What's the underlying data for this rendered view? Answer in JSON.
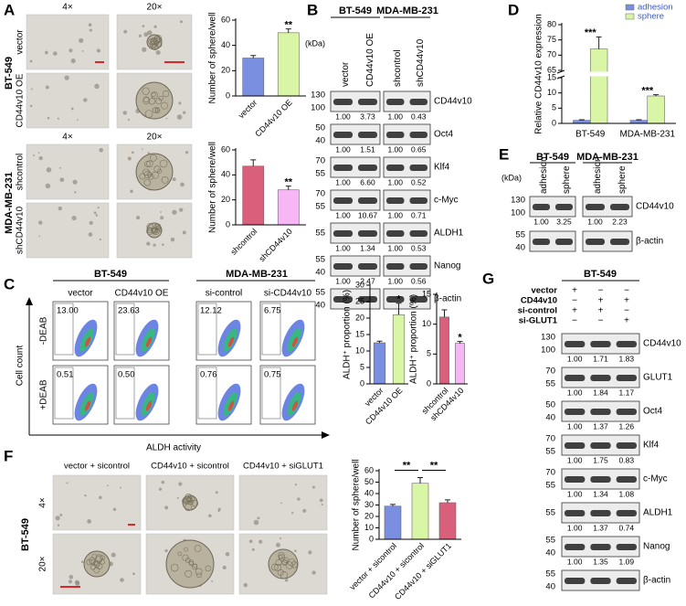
{
  "figure": {
    "A": {
      "label": "A",
      "groups": [
        {
          "name": "BT-549",
          "magnifications": [
            "4×",
            "20×"
          ],
          "rows": [
            "vector",
            "CD44v10 OE"
          ]
        },
        {
          "name": "MDA-MB-231",
          "magnifications": [
            "4×",
            "20×"
          ],
          "rows": [
            "shcontrol",
            "shCD44v10"
          ]
        }
      ]
    },
    "B": {
      "label": "B",
      "kda": "(kDa)",
      "groups": [
        "BT-549",
        "MDA-MB-231"
      ],
      "lanes": [
        "vector",
        "CD44v10 OE",
        "shcontrol",
        "shCD44v10"
      ],
      "blots": [
        {
          "protein": "CD44v10",
          "markers": [
            "130",
            "100"
          ],
          "quant": [
            "1.00",
            "3.73",
            "1.00",
            "0.43"
          ]
        },
        {
          "protein": "Oct4",
          "markers": [
            "50",
            "40"
          ],
          "quant": [
            "1.00",
            "1.51",
            "1.00",
            "0.65"
          ]
        },
        {
          "protein": "Klf4",
          "markers": [
            "70",
            "55"
          ],
          "quant": [
            "1.00",
            "6.60",
            "1.00",
            "0.52"
          ]
        },
        {
          "protein": "c-Myc",
          "markers": [
            "70",
            "55"
          ],
          "quant": [
            "1.00",
            "10.67",
            "1.00",
            "0.71"
          ]
        },
        {
          "protein": "ALDH1",
          "markers": [
            "55"
          ],
          "quant": [
            "1.00",
            "1.34",
            "1.00",
            "0.53"
          ]
        },
        {
          "protein": "Nanog",
          "markers": [
            "55",
            "40"
          ],
          "quant": [
            "1.00",
            "2.47",
            "1.00",
            "0.56"
          ]
        },
        {
          "protein": "β-actin",
          "markers": [
            "55",
            "40"
          ]
        }
      ]
    },
    "C": {
      "label": "C",
      "groups": [
        "BT-549",
        "MDA-MB-231"
      ],
      "columns": [
        "vector",
        "CD44v10 OE",
        "si-control",
        "si-CD44v10"
      ],
      "rows": [
        "-DEAB",
        "+DEAB"
      ],
      "gates": [
        [
          "13.00",
          "23.63",
          "12.12",
          "6.75"
        ],
        [
          "0.51",
          "0.50",
          "0.76",
          "0.75"
        ]
      ],
      "y_label": "Cell count",
      "x_label": "ALDH activity"
    },
    "D": {
      "label": "D"
    },
    "E": {
      "label": "E",
      "kda": "(kDa)",
      "groups": [
        "BT-549",
        "MDA-MB-231"
      ],
      "lanes": [
        "adhesion",
        "sphere",
        "adhesion",
        "sphere"
      ],
      "blots": [
        {
          "protein": "CD44v10",
          "markers": [
            "130",
            "100"
          ],
          "quant": [
            "1.00",
            "3.25",
            "1.00",
            "2.23"
          ]
        },
        {
          "protein": "β-actin",
          "markers": [
            "55",
            "40"
          ]
        }
      ]
    },
    "F": {
      "label": "F",
      "group": "BT-549",
      "columns": [
        "vector + sicontrol",
        "CD44v10 + sicontrol",
        "CD44v10 + siGLUT1"
      ],
      "magnifications": [
        "4×",
        "20×"
      ]
    },
    "G": {
      "label": "G",
      "group": "BT-549",
      "conditions": [
        {
          "name": "vector",
          "marks": [
            "+",
            "−",
            "−"
          ]
        },
        {
          "name": "CD44v10",
          "marks": [
            "−",
            "+",
            "+"
          ]
        },
        {
          "name": "si-control",
          "marks": [
            "+",
            "+",
            "−"
          ]
        },
        {
          "name": "si-GLUT1",
          "marks": [
            "−",
            "−",
            "+"
          ]
        }
      ],
      "blots": [
        {
          "protein": "CD44v10",
          "markers": [
            "130",
            "100"
          ],
          "quant": [
            "1.00",
            "1.71",
            "1.83"
          ]
        },
        {
          "protein": "GLUT1",
          "markers": [
            "70",
            "55"
          ],
          "quant": [
            "1.00",
            "1.84",
            "1.17"
          ]
        },
        {
          "protein": "Oct4",
          "markers": [
            "50",
            "40"
          ],
          "quant": [
            "1.00",
            "1.37",
            "1.26"
          ]
        },
        {
          "protein": "Klf4",
          "markers": [
            "70",
            "55"
          ],
          "quant": [
            "1.00",
            "1.75",
            "0.83"
          ]
        },
        {
          "protein": "c-Myc",
          "markers": [
            "70",
            "55"
          ],
          "quant": [
            "1.00",
            "1.34",
            "1.08"
          ]
        },
        {
          "protein": "ALDH1",
          "markers": [
            "55"
          ],
          "quant": [
            "1.00",
            "1.37",
            "0.74"
          ]
        },
        {
          "protein": "Nanog",
          "markers": [
            "55",
            "40"
          ],
          "quant": [
            "1.00",
            "1.35",
            "1.09"
          ]
        },
        {
          "protein": "β-actin",
          "markers": [
            "55",
            "40"
          ]
        }
      ]
    }
  },
  "chart_data": [
    {
      "type": "bar",
      "y_label": "Number of sphere/well",
      "categories": [
        "vector",
        "CD44v10 OE"
      ],
      "values": [
        30,
        50
      ],
      "errors": [
        2,
        3
      ],
      "colors": [
        "#7b8fe0",
        "#d9f5a6"
      ],
      "ylim": [
        0,
        60
      ],
      "yticks": [
        0,
        20,
        40,
        60
      ],
      "xtick_rotation": 45,
      "annotations": [
        {
          "category": "CD44v10 OE",
          "text": "**"
        }
      ]
    },
    {
      "type": "bar",
      "y_label": "Number of sphere/well",
      "categories": [
        "shcontrol",
        "shCD44v10"
      ],
      "values": [
        47,
        28
      ],
      "errors": [
        5,
        3
      ],
      "colors": [
        "#d9607a",
        "#f7b6f5"
      ],
      "ylim": [
        0,
        60
      ],
      "yticks": [
        0,
        20,
        40,
        60
      ],
      "xtick_rotation": 45,
      "annotations": [
        {
          "category": "shCD44v10",
          "text": "**"
        }
      ]
    },
    {
      "type": "bar",
      "y_label": "Relative CD44v10 expression",
      "categories": [
        "BT-549",
        "MDA-MB-231"
      ],
      "series": [
        {
          "name": "adhesion",
          "color": "#7b8fe0",
          "values": [
            1,
            1
          ],
          "errors": [
            0.2,
            0.2
          ]
        },
        {
          "name": "sphere",
          "color": "#d9f5a6",
          "values": [
            72,
            9
          ],
          "errors": [
            4,
            0.4
          ]
        }
      ],
      "ylim": [
        0,
        80
      ],
      "yticks": [
        0,
        5,
        10,
        15,
        65,
        70,
        75,
        80
      ],
      "legend": "upper right",
      "annotations": [
        {
          "category": "BT-549",
          "text": "***"
        },
        {
          "category": "MDA-MB-231",
          "text": "***"
        }
      ]
    },
    {
      "type": "bar",
      "y_label": "ALDH⁺ proportion (%)",
      "categories": [
        "vector",
        "CD44v10 OE"
      ],
      "values": [
        12.5,
        21
      ],
      "errors": [
        0.5,
        3.5
      ],
      "colors": [
        "#7b8fe0",
        "#d9f5a6"
      ],
      "ylim": [
        0,
        30
      ],
      "yticks": [
        0,
        5,
        10,
        15,
        20,
        25,
        30
      ],
      "xtick_rotation": 45,
      "annotations": [
        {
          "category": "CD44v10 OE",
          "text": "*"
        }
      ]
    },
    {
      "type": "bar",
      "y_label": "ALDH⁺ proportion (%)",
      "categories": [
        "shcontrol",
        "shCD44v10"
      ],
      "values": [
        11.2,
        6.8
      ],
      "errors": [
        1.2,
        0.3
      ],
      "colors": [
        "#d9607a",
        "#f7b6f5"
      ],
      "ylim": [
        0,
        15
      ],
      "yticks": [
        0,
        5,
        10,
        15
      ],
      "xtick_rotation": 45,
      "annotations": [
        {
          "category": "shCD44v10",
          "text": "*"
        }
      ]
    },
    {
      "type": "bar",
      "y_label": "Number of sphere/well",
      "categories": [
        "vector + sicontrol",
        "CD44v10 + sicontrol",
        "CD44v10 + siGLUT1"
      ],
      "values": [
        29,
        49,
        32
      ],
      "errors": [
        1.5,
        5,
        2.5
      ],
      "colors": [
        "#7b8fe0",
        "#d9f5a6",
        "#d9607a"
      ],
      "ylim": [
        0,
        60
      ],
      "yticks": [
        0,
        10,
        20,
        30,
        40,
        50,
        60
      ],
      "xtick_rotation": 45,
      "annotations": [
        {
          "from": "vector + sicontrol",
          "to": "CD44v10 + sicontrol",
          "text": "**"
        },
        {
          "from": "CD44v10 + sicontrol",
          "to": "CD44v10 + siGLUT1",
          "text": "**"
        }
      ]
    }
  ]
}
